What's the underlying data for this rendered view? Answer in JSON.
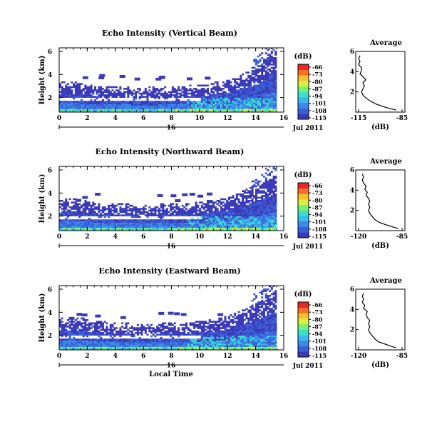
{
  "chart_data": [
    {
      "type": "heatmap",
      "title": "Echo Intensity (Vertical Beam)",
      "ylabel": "Height (km)",
      "xlabel": "",
      "xlim": [
        0,
        16
      ],
      "ylim": [
        0,
        6
      ],
      "xticks": [
        "0",
        "2",
        "4",
        "6",
        "8",
        "10",
        "12",
        "14",
        "16"
      ],
      "yticks": [
        "2",
        "4",
        "6"
      ],
      "date_bar": {
        "day": "16",
        "month_year": "Jul 2011"
      },
      "colorbar": {
        "unit": "(dB)",
        "ticks": [
          "-66",
          "-73",
          "-80",
          "-87",
          "-94",
          "-101",
          "-108",
          "-115"
        ],
        "range": [
          -115,
          -66
        ]
      },
      "echo_top_km": [
        2.2,
        2.3,
        2.0,
        1.9,
        1.9,
        1.8,
        1.8,
        1.8,
        1.9,
        1.9,
        2.0,
        2.2,
        2.4,
        3.0,
        3.4,
        4.9
      ],
      "average_profile": {
        "title": "Average",
        "xlabel": "(dB)",
        "xticks": [
          "-115",
          "-85"
        ],
        "yticks": [
          "2",
          "4",
          "6"
        ],
        "height_km": [
          0.2,
          0.5,
          0.8,
          1.1,
          1.4,
          1.7,
          2.0,
          2.3,
          2.6,
          2.9,
          3.2,
          3.5,
          3.8,
          4.1,
          4.4,
          4.7,
          5.0,
          5.3,
          5.6
        ],
        "db": [
          -89,
          -97,
          -103,
          -107,
          -110,
          -112,
          -113,
          -112,
          -111,
          -112,
          -110,
          -112,
          -114,
          -113,
          -113,
          -115,
          -114,
          -115,
          -114
        ]
      }
    },
    {
      "type": "heatmap",
      "title": "Echo Intensity (Northward Beam)",
      "ylabel": "Height (km)",
      "xlabel": "",
      "xlim": [
        0,
        16
      ],
      "ylim": [
        0,
        6
      ],
      "xticks": [
        "0",
        "2",
        "4",
        "6",
        "8",
        "10",
        "12",
        "14",
        "16"
      ],
      "yticks": [
        "2",
        "4",
        "6"
      ],
      "date_bar": {
        "day": "16",
        "month_year": "Jul 2011"
      },
      "colorbar": {
        "unit": "(dB)",
        "ticks": [
          "-66",
          "-73",
          "-80",
          "-87",
          "-94",
          "-101",
          "-108",
          "-115"
        ],
        "range": [
          -115,
          -66
        ]
      },
      "echo_top_km": [
        2.3,
        2.4,
        2.2,
        2.0,
        2.0,
        1.9,
        1.9,
        1.9,
        2.0,
        2.0,
        2.1,
        2.3,
        2.5,
        3.1,
        3.6,
        4.4
      ],
      "average_profile": {
        "title": "Average",
        "xlabel": "(dB)",
        "xticks": [
          "-120",
          "-85"
        ],
        "yticks": [
          "2",
          "4",
          "6"
        ],
        "height_km": [
          0.2,
          0.5,
          0.8,
          1.1,
          1.4,
          1.7,
          2.0,
          2.3,
          2.6,
          2.9,
          3.2,
          3.5,
          3.8,
          4.1,
          4.4,
          4.7,
          5.0,
          5.3,
          5.6
        ],
        "db": [
          -88,
          -96,
          -103,
          -107,
          -109,
          -111,
          -112,
          -111,
          -112,
          -111,
          -112,
          -114,
          -113,
          -115,
          -114,
          -116,
          -117,
          -116,
          -117
        ]
      }
    },
    {
      "type": "heatmap",
      "title": "Echo Intensity (Eastward Beam)",
      "ylabel": "Height (km)",
      "xlabel": "Local Time",
      "xlim": [
        0,
        16
      ],
      "ylim": [
        0,
        6
      ],
      "xticks": [
        "0",
        "2",
        "4",
        "6",
        "8",
        "10",
        "12",
        "14",
        "16"
      ],
      "yticks": [
        "2",
        "4",
        "6"
      ],
      "date_bar": {
        "day": "16",
        "month_year": "Jul 2011"
      },
      "colorbar": {
        "unit": "(dB)",
        "ticks": [
          "-66",
          "-73",
          "-80",
          "-87",
          "-94",
          "-101",
          "-108",
          "-115"
        ],
        "range": [
          -115,
          -66
        ]
      },
      "echo_top_km": [
        2.4,
        2.5,
        2.3,
        2.1,
        2.0,
        1.9,
        1.9,
        1.9,
        2.0,
        2.0,
        2.1,
        2.3,
        2.6,
        3.2,
        3.7,
        4.6
      ],
      "average_profile": {
        "title": "Average",
        "xlabel": "(dB)",
        "xticks": [
          "-120",
          "-85"
        ],
        "yticks": [
          "2",
          "4",
          "6"
        ],
        "height_km": [
          0.2,
          0.5,
          0.8,
          1.1,
          1.4,
          1.7,
          2.0,
          2.3,
          2.6,
          2.9,
          3.2,
          3.5,
          3.8,
          4.1,
          4.4,
          4.7,
          5.0,
          5.3,
          5.6
        ],
        "db": [
          -90,
          -97,
          -104,
          -107,
          -109,
          -111,
          -112,
          -111,
          -112,
          -111,
          -113,
          -114,
          -113,
          -116,
          -115,
          -117,
          -116,
          -117,
          -116
        ]
      }
    }
  ],
  "colors": {
    "scale": [
      "#3a3ab8",
      "#3a5fd8",
      "#3a8ae8",
      "#3ab8f0",
      "#3ae0c8",
      "#7af070",
      "#d8f040",
      "#f8c030",
      "#f87028",
      "#e82828"
    ],
    "line": "#000000",
    "background": "#ffffff"
  }
}
